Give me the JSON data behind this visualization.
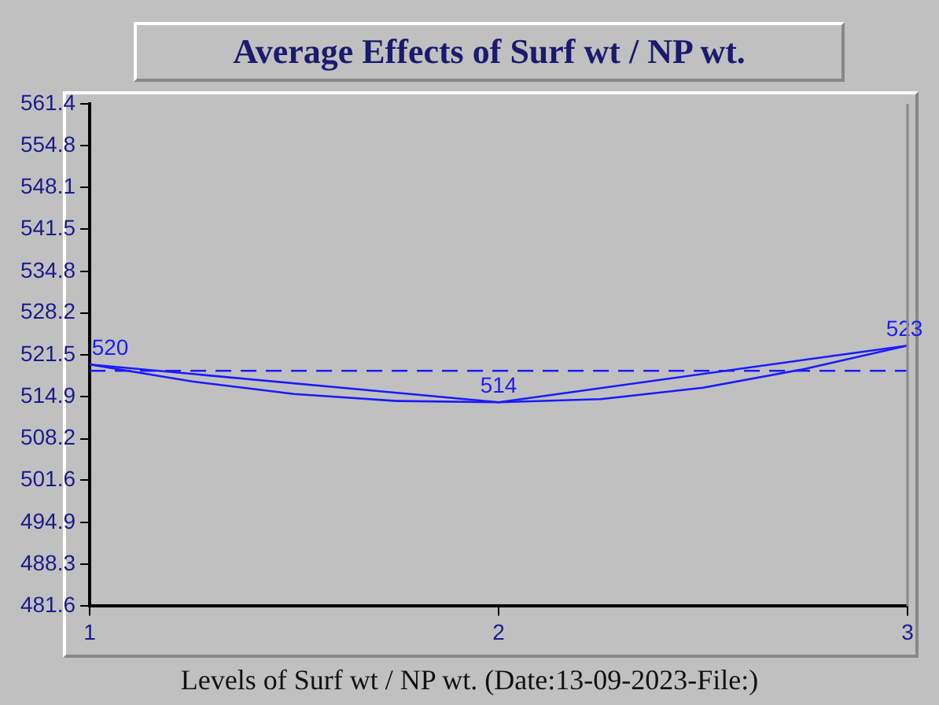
{
  "chart_data": {
    "type": "line",
    "title": "Average Effects of Surf wt / NP wt.",
    "xlabel": "Levels of Surf wt / NP wt. (Date:13-09-2023-File:)",
    "xlim": [
      1,
      3
    ],
    "xticks": [
      1,
      2,
      3
    ],
    "ylim": [
      481.6,
      561.4
    ],
    "yticks": [
      481.6,
      488.3,
      494.9,
      501.6,
      508.2,
      514.9,
      521.5,
      528.2,
      534.8,
      541.5,
      548.1,
      554.8,
      561.4
    ],
    "series": [
      {
        "color": "#1a1aff",
        "x": [
          1,
          2,
          3
        ],
        "values": [
          520,
          514,
          523
        ],
        "value_labels": [
          "520",
          "514",
          "523"
        ]
      },
      {
        "color": "#1a1aff",
        "x": [
          1,
          1.25,
          1.5,
          1.75,
          2,
          2.25,
          2.5,
          2.75,
          3
        ],
        "values": [
          520,
          517.3,
          515.3,
          514.2,
          514,
          514.5,
          516.3,
          519.3,
          523
        ]
      }
    ],
    "ref_lines": [
      {
        "axis": "y",
        "value": 519,
        "color": "#1a1aff",
        "line_style": "dashed"
      }
    ],
    "grid": false,
    "legend": false,
    "marker": "none",
    "line_style": "solid"
  }
}
